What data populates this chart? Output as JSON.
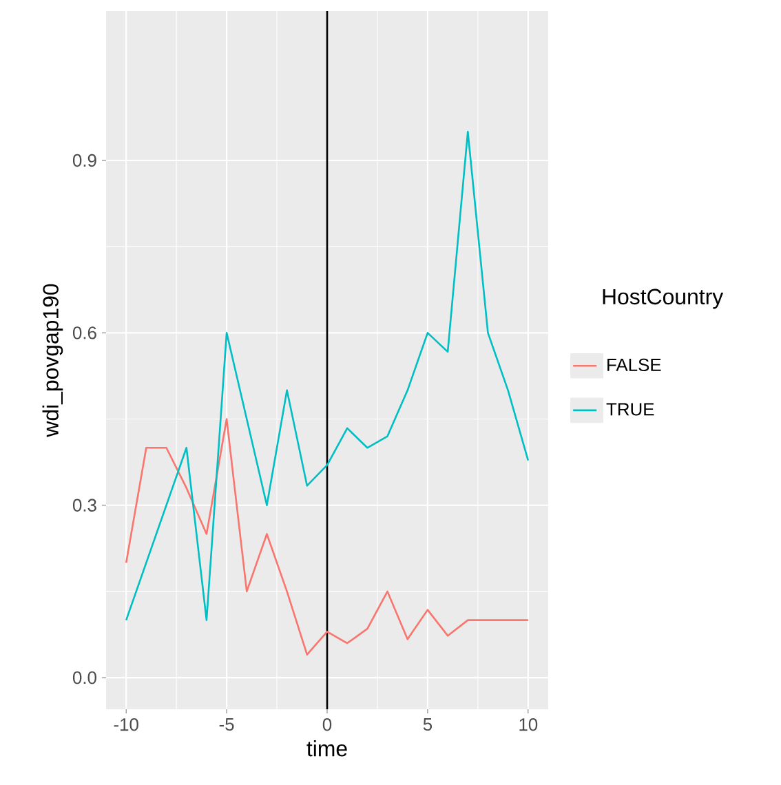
{
  "chart_data": {
    "type": "line",
    "xlabel": "time",
    "ylabel": "wdi_povgap190",
    "legend_title": "HostCountry",
    "xlim": [
      -11,
      11
    ],
    "ylim": [
      -0.055,
      1.16
    ],
    "xticks": [
      -10,
      -5,
      0,
      5,
      10
    ],
    "yticks": [
      {
        "value": 0,
        "label": "0.0"
      },
      0.3,
      0.6,
      0.9
    ],
    "grid": true,
    "legend": "right",
    "ref_lines": [
      {
        "axis": "x",
        "value": 0,
        "color": "#000000"
      }
    ],
    "series": [
      {
        "name": "FALSE",
        "color": "#f8766d",
        "x": [
          -10,
          -9,
          -8,
          -7,
          -6,
          -5,
          -4,
          -3,
          -2,
          -1,
          0,
          1,
          2,
          3,
          4,
          5,
          6,
          7,
          8,
          9,
          10
        ],
        "values": [
          0.2,
          0.4,
          0.4,
          0.33,
          0.25,
          0.45,
          0.15,
          0.25,
          0.15,
          0.04,
          0.08,
          0.06,
          0.085,
          0.15,
          0.067,
          0.118,
          0.073,
          0.1,
          0.1,
          0.1,
          0.1
        ]
      },
      {
        "name": "TRUE",
        "color": "#00bfc4",
        "x": [
          -10,
          -7,
          -6,
          -5,
          -3,
          -2,
          -1,
          0,
          1,
          2,
          3,
          4,
          5,
          6,
          7,
          8,
          9,
          10
        ],
        "values": [
          0.1,
          0.4,
          0.1,
          0.6,
          0.3,
          0.5,
          0.334,
          0.37,
          0.434,
          0.4,
          0.42,
          0.5,
          0.6,
          0.567,
          0.95,
          0.6,
          0.5,
          0.378
        ]
      }
    ]
  }
}
